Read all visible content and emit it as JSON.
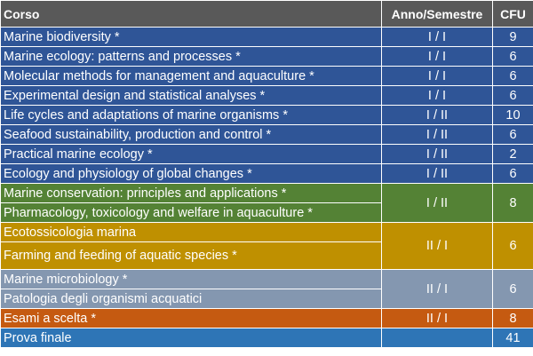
{
  "table": {
    "headers": {
      "corso": "Corso",
      "anno": "Anno/Semestre",
      "cfu": "CFU"
    },
    "blue_rows": [
      {
        "course": "Marine biodiversity  *",
        "sem": "I / I",
        "cfu": "9"
      },
      {
        "course": "Marine ecology: patterns and processes  *",
        "sem": "I / I",
        "cfu": "6"
      },
      {
        "course": "Molecular methods for management and aquaculture  *",
        "sem": "I / I",
        "cfu": "6"
      },
      {
        "course": "Experimental design and statistical analyses  *",
        "sem": "I / I",
        "cfu": "6"
      },
      {
        "course": "Life cycles and adaptations of marine organisms  *",
        "sem": "I / II",
        "cfu": "10"
      },
      {
        "course": "Seafood sustainability, production and control  *",
        "sem": "I / II",
        "cfu": "6"
      },
      {
        "course": "Practical marine ecology  *",
        "sem": "I / II",
        "cfu": "2"
      },
      {
        "course": "Ecology and physiology of global changes  *",
        "sem": "I / II",
        "cfu": "6"
      }
    ],
    "green_group": {
      "courses": [
        "Marine conservation: principles and applications  *",
        "Pharmacology, toxicology and welfare in aquaculture  *"
      ],
      "sem": "I / II",
      "cfu": "8"
    },
    "gold_group": {
      "courses": [
        "Ecotossicologia marina",
        " Farming and feeding of aquatic species  *"
      ],
      "sem": "II / I",
      "cfu": "6"
    },
    "gray_group": {
      "courses": [
        "Marine microbiology  *",
        "Patologia degli organismi acquatici"
      ],
      "sem": "II / I",
      "cfu": "6"
    },
    "orange_row": {
      "course": "Esami a scelta  *",
      "sem": "II / I",
      "cfu": "8"
    },
    "final_row": {
      "course": "Prova finale",
      "sem": "",
      "cfu": "41"
    }
  }
}
